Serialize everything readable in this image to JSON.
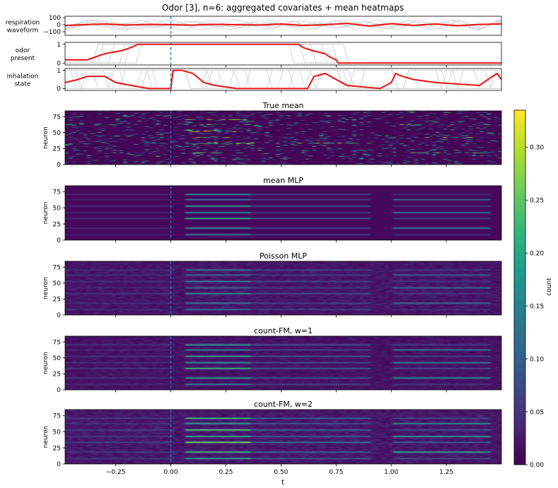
{
  "chart_data": {
    "type": "heatmap",
    "title": "Odor [3], n=6: aggregated covariates + mean heatmaps",
    "x_axis": {
      "label": "t",
      "range": [
        -0.48,
        1.5
      ],
      "ticks": [
        -0.25,
        0.0,
        0.25,
        0.5,
        0.75,
        1.0,
        1.25
      ],
      "tick_labels": [
        "−0.25",
        "0.00",
        "0.25",
        "0.50",
        "0.75",
        "1.00",
        "1.25"
      ]
    },
    "event_marker": {
      "t": 0.0,
      "style": "dashed",
      "color": "#1f77b4"
    },
    "covariates": [
      {
        "id": "respiration",
        "ylabel_lines": [
          "respiration",
          "waveform"
        ],
        "ylim": [
          -150,
          120
        ],
        "ticks": [
          100,
          0,
          -100
        ],
        "tick_labels": [
          "100",
          "0",
          "−100"
        ],
        "mean_t": [
          -0.48,
          -0.4,
          -0.3,
          -0.2,
          -0.1,
          0.0,
          0.1,
          0.2,
          0.3,
          0.4,
          0.5,
          0.6,
          0.7,
          0.8,
          0.9,
          1.0,
          1.1,
          1.2,
          1.3,
          1.4,
          1.5
        ],
        "mean_values": [
          -10,
          0,
          10,
          -5,
          5,
          0,
          -5,
          5,
          0,
          -5,
          10,
          -10,
          0,
          20,
          -20,
          15,
          -10,
          10,
          -15,
          5,
          10
        ]
      },
      {
        "id": "odor",
        "ylabel_lines": [
          "odor",
          "present"
        ],
        "ylim": [
          -0.1,
          1.1
        ],
        "ticks": [
          1,
          0
        ],
        "tick_labels": [
          "1",
          "0"
        ],
        "mean_t": [
          -0.48,
          -0.38,
          -0.3,
          -0.22,
          -0.18,
          -0.15,
          -0.1,
          0.0,
          0.2,
          0.4,
          0.5,
          0.58,
          0.6,
          0.64,
          0.7,
          0.72,
          0.75,
          0.76,
          1.0,
          1.5
        ],
        "mean_values": [
          0.17,
          0.17,
          0.5,
          0.67,
          0.83,
          1.0,
          1.0,
          1.0,
          1.0,
          1.0,
          1.0,
          1.0,
          0.83,
          0.67,
          0.5,
          0.33,
          0.17,
          0.0,
          0.0,
          0.0
        ]
      },
      {
        "id": "inhalation",
        "ylabel_lines": [
          "inhalation",
          "state"
        ],
        "ylim": [
          -0.1,
          1.1
        ],
        "ticks": [
          1,
          0
        ],
        "tick_labels": [
          "1",
          "0"
        ],
        "mean_t": [
          -0.48,
          -0.42,
          -0.38,
          -0.3,
          -0.25,
          -0.18,
          -0.1,
          -0.05,
          0.0,
          0.01,
          0.05,
          0.1,
          0.15,
          0.2,
          0.3,
          0.5,
          0.62,
          0.65,
          0.7,
          0.75,
          0.8,
          0.95,
          1.0,
          1.02,
          1.05,
          1.1,
          1.2,
          1.4,
          1.46,
          1.48,
          1.5
        ],
        "mean_values": [
          0.33,
          0.5,
          0.67,
          0.67,
          0.33,
          0.17,
          0.0,
          0.0,
          0.0,
          1.0,
          1.0,
          0.83,
          0.33,
          0.17,
          0.0,
          0.0,
          0.0,
          0.67,
          0.83,
          0.5,
          0.17,
          0.0,
          0.33,
          0.83,
          0.67,
          0.5,
          0.33,
          0.17,
          0.67,
          0.83,
          0.5
        ]
      }
    ],
    "heatmaps": [
      {
        "title": "True mean",
        "ylabel": "neuron",
        "style": "sparse"
      },
      {
        "title": "mean MLP",
        "ylabel": "neuron",
        "style": "smooth"
      },
      {
        "title": "Poisson MLP",
        "ylabel": "neuron",
        "style": "noisy"
      },
      {
        "title": "count-FM, w=1",
        "ylabel": "neuron",
        "style": "smooth_noisy"
      },
      {
        "title": "count-FM, w=2",
        "ylabel": "neuron",
        "style": "bright"
      }
    ],
    "heatmap_y": {
      "range": [
        0,
        84
      ],
      "ticks": [
        0,
        25,
        50,
        75
      ],
      "tick_labels": [
        "0",
        "25",
        "50",
        "75"
      ]
    },
    "colorbar": {
      "label": "count",
      "range": [
        0.0,
        0.335
      ],
      "ticks": [
        0.0,
        0.05,
        0.1,
        0.15,
        0.2,
        0.25,
        0.3
      ],
      "tick_labels": [
        "0.00",
        "0.05",
        "0.10",
        "0.15",
        "0.20",
        "0.25",
        "0.30"
      ],
      "colormap": "viridis"
    },
    "colors": {
      "mean_line": "#ee1111",
      "trial_line": "#cccccc",
      "event_line": "#1f77b4"
    }
  }
}
